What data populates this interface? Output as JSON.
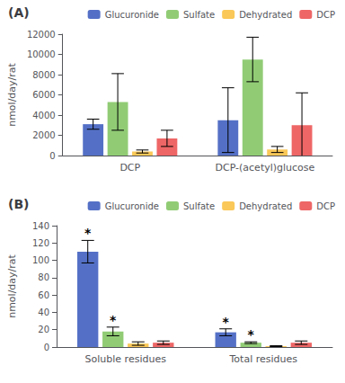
{
  "chart_data": [
    {
      "type": "bar",
      "title": "(A)",
      "ylabel": "nmol/day/rat",
      "categories": [
        "DCP",
        "DCP-(acetyl)glucose"
      ],
      "series": [
        {
          "name": "Glucuronide",
          "values": [
            3100,
            3500
          ],
          "errors": [
            500,
            3200
          ]
        },
        {
          "name": "Sulfate",
          "values": [
            5300,
            9500
          ],
          "errors": [
            2800,
            2200
          ]
        },
        {
          "name": "Dehydrated",
          "values": [
            400,
            600
          ],
          "errors": [
            150,
            300
          ]
        },
        {
          "name": "DCP",
          "values": [
            1700,
            3000
          ],
          "errors": [
            800,
            3200
          ]
        }
      ],
      "ylim": [
        0,
        12000
      ],
      "yticks": [
        0,
        2000,
        4000,
        6000,
        8000,
        10000,
        12000
      ],
      "grid": false,
      "legend": "upper right"
    },
    {
      "type": "bar",
      "title": "(B)",
      "ylabel": "nmol/day/rat",
      "categories": [
        "Soluble residues",
        "Total residues"
      ],
      "series": [
        {
          "name": "Glucuronide",
          "values": [
            110,
            17
          ],
          "errors": [
            13,
            4
          ]
        },
        {
          "name": "Sulfate",
          "values": [
            18,
            5
          ],
          "errors": [
            5,
            1
          ]
        },
        {
          "name": "Dehydrated",
          "values": [
            4,
            1
          ],
          "errors": [
            2,
            0.5
          ]
        },
        {
          "name": "DCP",
          "values": [
            5,
            5
          ],
          "errors": [
            2,
            2
          ]
        }
      ],
      "ylim": [
        0,
        140
      ],
      "yticks": [
        0,
        20,
        40,
        60,
        80,
        100,
        120,
        140
      ],
      "grid": false,
      "legend": "upper right",
      "annotations": [
        {
          "text": "*",
          "series": "Glucuronide",
          "category": "Soluble residues"
        },
        {
          "text": "*",
          "series": "Sulfate",
          "category": "Soluble residues"
        },
        {
          "text": "*",
          "series": "Glucuronide",
          "category": "Total residues"
        },
        {
          "text": "*",
          "series": "Sulfate",
          "category": "Total residues"
        }
      ]
    }
  ]
}
